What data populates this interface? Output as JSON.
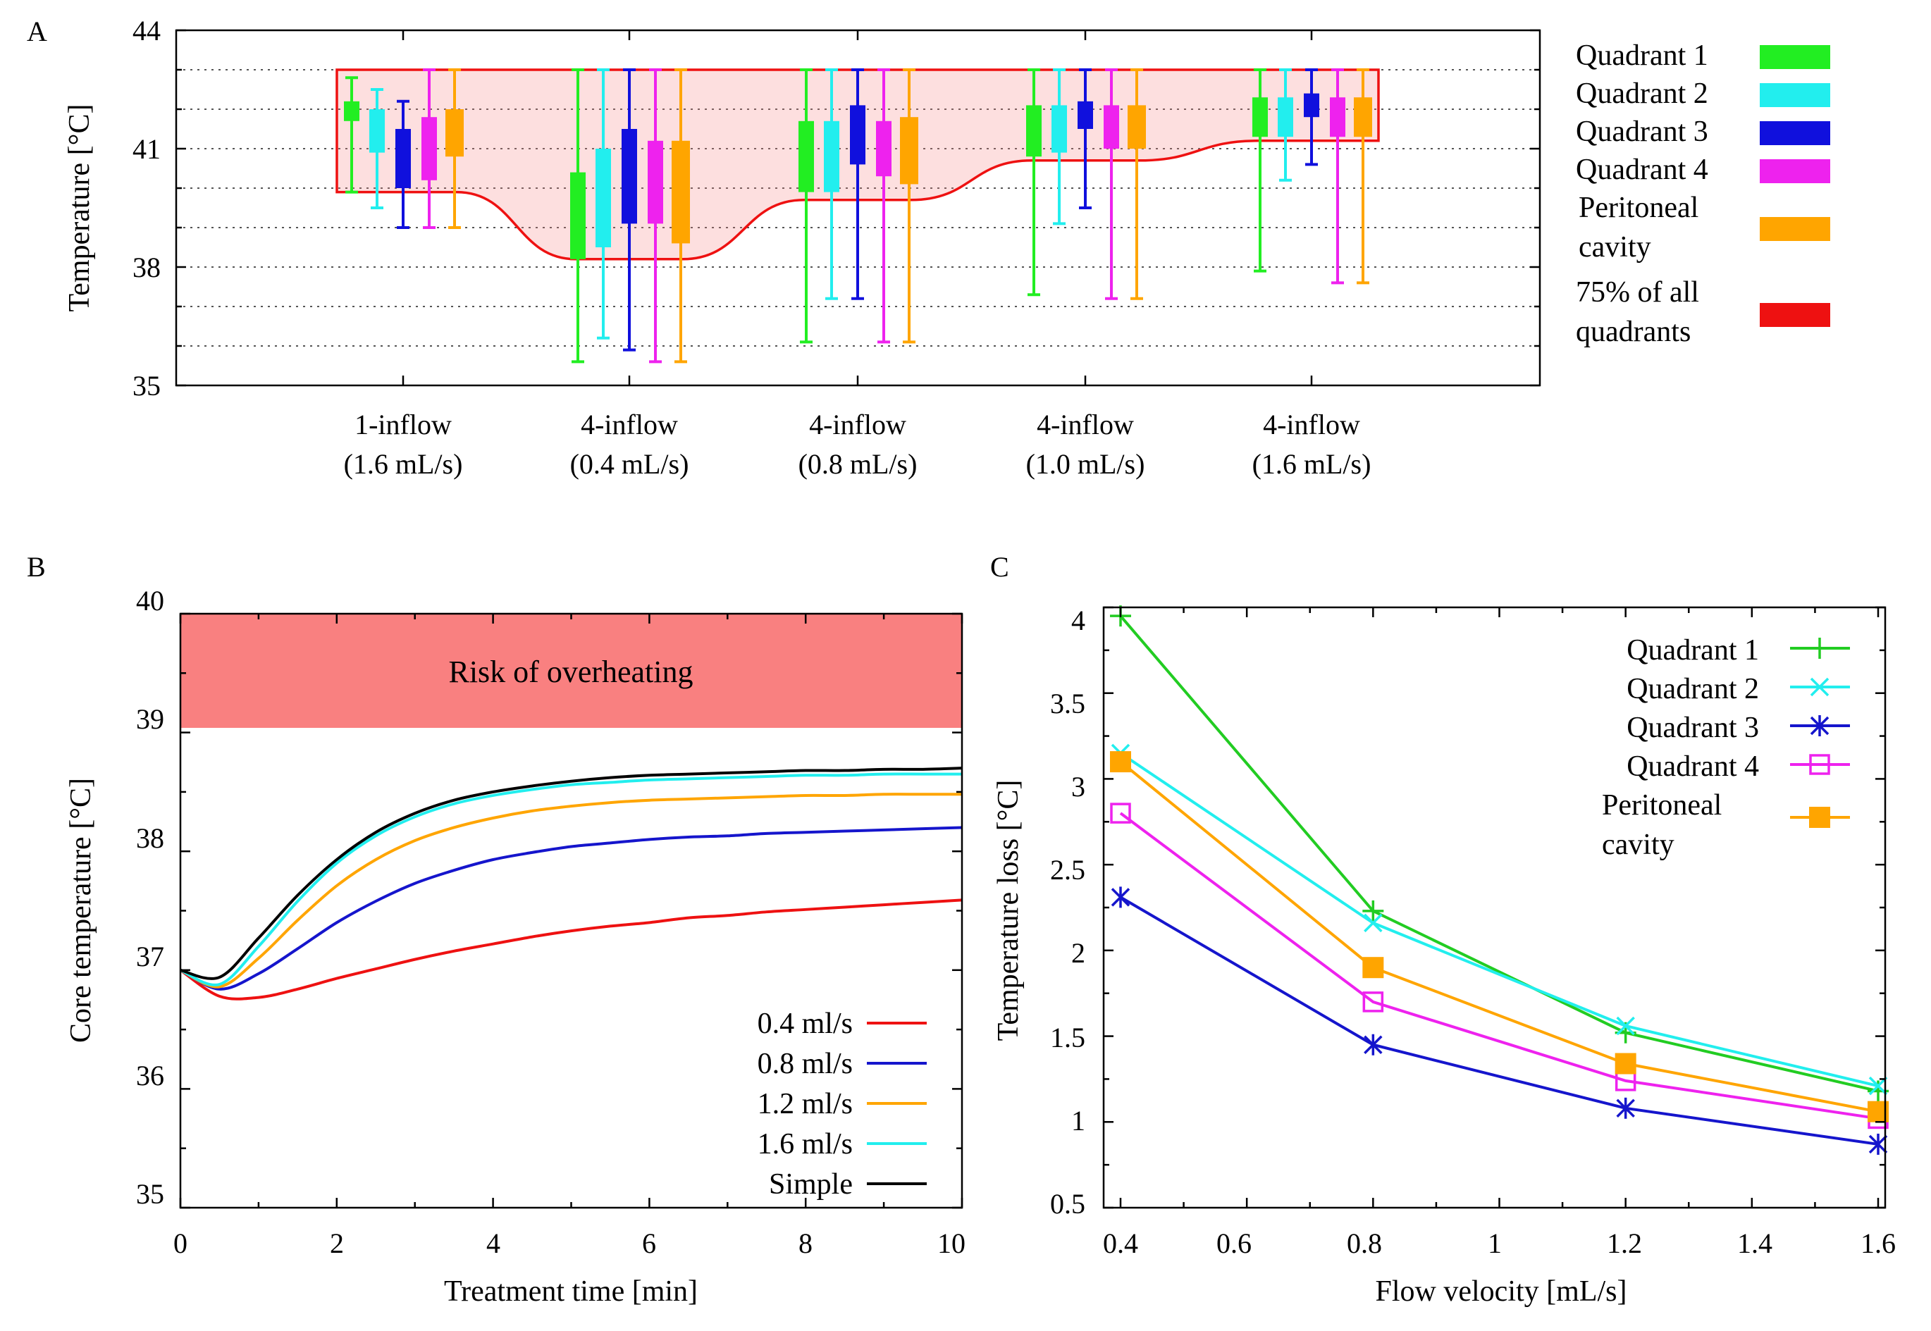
{
  "panels": {
    "A": {
      "label": "A",
      "ylabel": "Temperature [°C]",
      "ylim": [
        35,
        44
      ],
      "yticks": [
        "35",
        "38",
        "41",
        "44"
      ],
      "categories": [
        {
          "line1": "1-inflow",
          "line2": "(1.6 mL/s)"
        },
        {
          "line1": "4-inflow",
          "line2": "(0.4 mL/s)"
        },
        {
          "line1": "4-inflow",
          "line2": "(0.8 mL/s)"
        },
        {
          "line1": "4-inflow",
          "line2": "(1.0 mL/s)"
        },
        {
          "line1": "4-inflow",
          "line2": "(1.6 mL/s)"
        }
      ],
      "legend": [
        {
          "label": "Quadrant 1",
          "color": "#22ee22"
        },
        {
          "label": "Quadrant 2",
          "color": "#22eeee"
        },
        {
          "label": "Quadrant 3",
          "color": "#1010dd"
        },
        {
          "label": "Quadrant 4",
          "color": "#ee22ee"
        },
        {
          "label1": "Peritoneal",
          "label2": "cavity",
          "color": "#ffa500"
        },
        {
          "label1": "75% of all",
          "label2": "quadrants",
          "color": "#ee1111"
        }
      ]
    },
    "B": {
      "label": "B",
      "xlabel": "Treatment time [min]",
      "ylabel": "Core temperature [°C]",
      "xticks": [
        "0",
        "2",
        "4",
        "6",
        "8",
        "10"
      ],
      "yticks": [
        "35",
        "36",
        "37",
        "38",
        "39",
        "40"
      ],
      "risk_label": "Risk of overheating",
      "legend": [
        {
          "label": "0.4 ml/s",
          "color": "#ee1111"
        },
        {
          "label": "0.8 ml/s",
          "color": "#1515cc"
        },
        {
          "label": "1.2 ml/s",
          "color": "#ffa500"
        },
        {
          "label": "1.6 ml/s",
          "color": "#22eeee"
        },
        {
          "label": "Simple",
          "color": "#000000"
        }
      ]
    },
    "C": {
      "label": "C",
      "xlabel": "Flow velocity [mL/s]",
      "ylabel": "Temperature loss [°C]",
      "xticks": [
        "0.4",
        "0.6",
        "0.8",
        "1",
        "1.2",
        "1.4",
        "1.6"
      ],
      "yticks": [
        "0.5",
        "1",
        "1.5",
        "2",
        "2.5",
        "3",
        "3.5",
        "4"
      ],
      "legend": [
        {
          "label": "Quadrant 1",
          "color": "#22cc22"
        },
        {
          "label": "Quadrant 2",
          "color": "#22eeee"
        },
        {
          "label": "Quadrant 3",
          "color": "#1515cc"
        },
        {
          "label": "Quadrant 4",
          "color": "#ee22ee"
        },
        {
          "label1": "Peritoneal",
          "label2": "cavity",
          "color": "#ffa500"
        }
      ]
    }
  },
  "chart_data": [
    {
      "type": "boxplot",
      "panel": "A",
      "title": "",
      "ylabel": "Temperature [°C]",
      "ylim": [
        35,
        44
      ],
      "grid": true,
      "categories": [
        "1-inflow (1.6 mL/s)",
        "4-inflow (0.4 mL/s)",
        "4-inflow (0.8 mL/s)",
        "4-inflow (1.0 mL/s)",
        "4-inflow (1.6 mL/s)"
      ],
      "series": [
        {
          "name": "Quadrant 1",
          "color": "#22ee22",
          "boxes": [
            {
              "min": 39.9,
              "q1": 41.7,
              "q3": 42.2,
              "max": 42.8
            },
            {
              "min": 35.6,
              "q1": 38.2,
              "q3": 40.4,
              "max": 43.0
            },
            {
              "min": 36.1,
              "q1": 39.9,
              "q3": 41.7,
              "max": 43.0
            },
            {
              "min": 37.3,
              "q1": 40.8,
              "q3": 42.1,
              "max": 43.0
            },
            {
              "min": 37.9,
              "q1": 41.3,
              "q3": 42.3,
              "max": 43.0
            }
          ]
        },
        {
          "name": "Quadrant 2",
          "color": "#22eeee",
          "boxes": [
            {
              "min": 39.5,
              "q1": 40.9,
              "q3": 42.0,
              "max": 42.5
            },
            {
              "min": 36.2,
              "q1": 38.5,
              "q3": 41.0,
              "max": 43.0
            },
            {
              "min": 37.2,
              "q1": 39.9,
              "q3": 41.7,
              "max": 43.0
            },
            {
              "min": 39.1,
              "q1": 40.9,
              "q3": 42.1,
              "max": 43.0
            },
            {
              "min": 40.2,
              "q1": 41.3,
              "q3": 42.3,
              "max": 43.0
            }
          ]
        },
        {
          "name": "Quadrant 3",
          "color": "#1010dd",
          "boxes": [
            {
              "min": 39.0,
              "q1": 40.0,
              "q3": 41.5,
              "max": 42.2
            },
            {
              "min": 35.9,
              "q1": 39.1,
              "q3": 41.5,
              "max": 43.0
            },
            {
              "min": 37.2,
              "q1": 40.6,
              "q3": 42.1,
              "max": 43.0
            },
            {
              "min": 39.5,
              "q1": 41.5,
              "q3": 42.2,
              "max": 43.0
            },
            {
              "min": 40.6,
              "q1": 41.8,
              "q3": 42.4,
              "max": 43.0
            }
          ]
        },
        {
          "name": "Quadrant 4",
          "color": "#ee22ee",
          "boxes": [
            {
              "min": 39.0,
              "q1": 40.2,
              "q3": 41.8,
              "max": 43.0
            },
            {
              "min": 35.6,
              "q1": 39.1,
              "q3": 41.2,
              "max": 43.0
            },
            {
              "min": 36.1,
              "q1": 40.3,
              "q3": 41.7,
              "max": 43.0
            },
            {
              "min": 37.2,
              "q1": 41.0,
              "q3": 42.1,
              "max": 43.0
            },
            {
              "min": 37.6,
              "q1": 41.3,
              "q3": 42.3,
              "max": 43.0
            }
          ]
        },
        {
          "name": "Peritoneal cavity",
          "color": "#ffa500",
          "boxes": [
            {
              "min": 39.0,
              "q1": 40.8,
              "q3": 42.0,
              "max": 43.0
            },
            {
              "min": 35.6,
              "q1": 38.6,
              "q3": 41.2,
              "max": 43.0
            },
            {
              "min": 36.1,
              "q1": 40.1,
              "q3": 41.8,
              "max": 43.0
            },
            {
              "min": 37.2,
              "q1": 41.0,
              "q3": 42.1,
              "max": 43.0
            },
            {
              "min": 37.6,
              "q1": 41.3,
              "q3": 42.3,
              "max": 43.0
            }
          ]
        }
      ],
      "band_75pct": {
        "name": "75% of all quadrants",
        "upper": 43.0,
        "lower": [
          39.9,
          38.2,
          39.7,
          40.7,
          41.2
        ]
      }
    },
    {
      "type": "line",
      "panel": "B",
      "title": "",
      "xlabel": "Treatment time [min]",
      "ylabel": "Core temperature [°C]",
      "xlim": [
        0,
        10
      ],
      "ylim": [
        35,
        40
      ],
      "shaded_region": {
        "label": "Risk of overheating",
        "y_from": 39,
        "y_to": 40,
        "color": "#f98080"
      },
      "x": [
        0,
        0.5,
        1,
        1.5,
        2,
        2.5,
        3,
        3.5,
        4,
        4.5,
        5,
        5.5,
        6,
        6.5,
        7,
        7.5,
        8,
        8.5,
        9,
        9.5,
        10
      ],
      "series": [
        {
          "name": "0.4 ml/s",
          "color": "#ee1111",
          "values": [
            37.0,
            36.78,
            36.77,
            36.84,
            36.93,
            37.01,
            37.09,
            37.16,
            37.22,
            37.28,
            37.33,
            37.37,
            37.4,
            37.44,
            37.46,
            37.49,
            37.51,
            37.53,
            37.55,
            37.57,
            37.59
          ]
        },
        {
          "name": "0.8 ml/s",
          "color": "#1515cc",
          "values": [
            37.0,
            36.84,
            36.97,
            37.18,
            37.4,
            37.58,
            37.73,
            37.84,
            37.93,
            37.99,
            38.04,
            38.07,
            38.1,
            38.12,
            38.13,
            38.15,
            38.16,
            38.17,
            38.18,
            38.19,
            38.2
          ]
        },
        {
          "name": "1.2 ml/s",
          "color": "#ffa500",
          "values": [
            37.0,
            36.86,
            37.1,
            37.42,
            37.71,
            37.93,
            38.09,
            38.2,
            38.28,
            38.34,
            38.38,
            38.41,
            38.43,
            38.44,
            38.45,
            38.46,
            38.47,
            38.47,
            38.48,
            38.48,
            38.48
          ]
        },
        {
          "name": "1.6 ml/s",
          "color": "#22eeee",
          "values": [
            37.0,
            36.88,
            37.2,
            37.58,
            37.9,
            38.13,
            38.29,
            38.4,
            38.47,
            38.52,
            38.56,
            38.58,
            38.6,
            38.61,
            38.62,
            38.63,
            38.64,
            38.64,
            38.65,
            38.65,
            38.65
          ]
        },
        {
          "name": "Simple",
          "color": "#000000",
          "values": [
            37.0,
            36.94,
            37.27,
            37.63,
            37.93,
            38.16,
            38.32,
            38.43,
            38.5,
            38.55,
            38.59,
            38.62,
            38.64,
            38.65,
            38.66,
            38.67,
            38.68,
            38.68,
            38.69,
            38.69,
            38.7
          ]
        }
      ]
    },
    {
      "type": "line",
      "panel": "C",
      "title": "",
      "xlabel": "Flow velocity [mL/s]",
      "ylabel": "Temperature loss [°C]",
      "xlim": [
        0.4,
        1.6
      ],
      "ylim": [
        0.5,
        4
      ],
      "x": [
        0.4,
        0.8,
        1.2,
        1.6
      ],
      "series": [
        {
          "name": "Quadrant 1",
          "color": "#22cc22",
          "marker": "plus",
          "values": [
            3.95,
            2.23,
            1.52,
            1.18
          ]
        },
        {
          "name": "Quadrant 2",
          "color": "#22eeee",
          "marker": "cross",
          "values": [
            3.15,
            2.16,
            1.56,
            1.21
          ]
        },
        {
          "name": "Quadrant 3",
          "color": "#1515cc",
          "marker": "star",
          "values": [
            2.31,
            1.45,
            1.08,
            0.87
          ]
        },
        {
          "name": "Quadrant 4",
          "color": "#ee22ee",
          "marker": "open-square",
          "values": [
            2.8,
            1.7,
            1.24,
            1.02
          ]
        },
        {
          "name": "Peritoneal cavity",
          "color": "#ffa500",
          "marker": "filled-square",
          "values": [
            3.1,
            1.9,
            1.34,
            1.06
          ]
        }
      ]
    }
  ]
}
